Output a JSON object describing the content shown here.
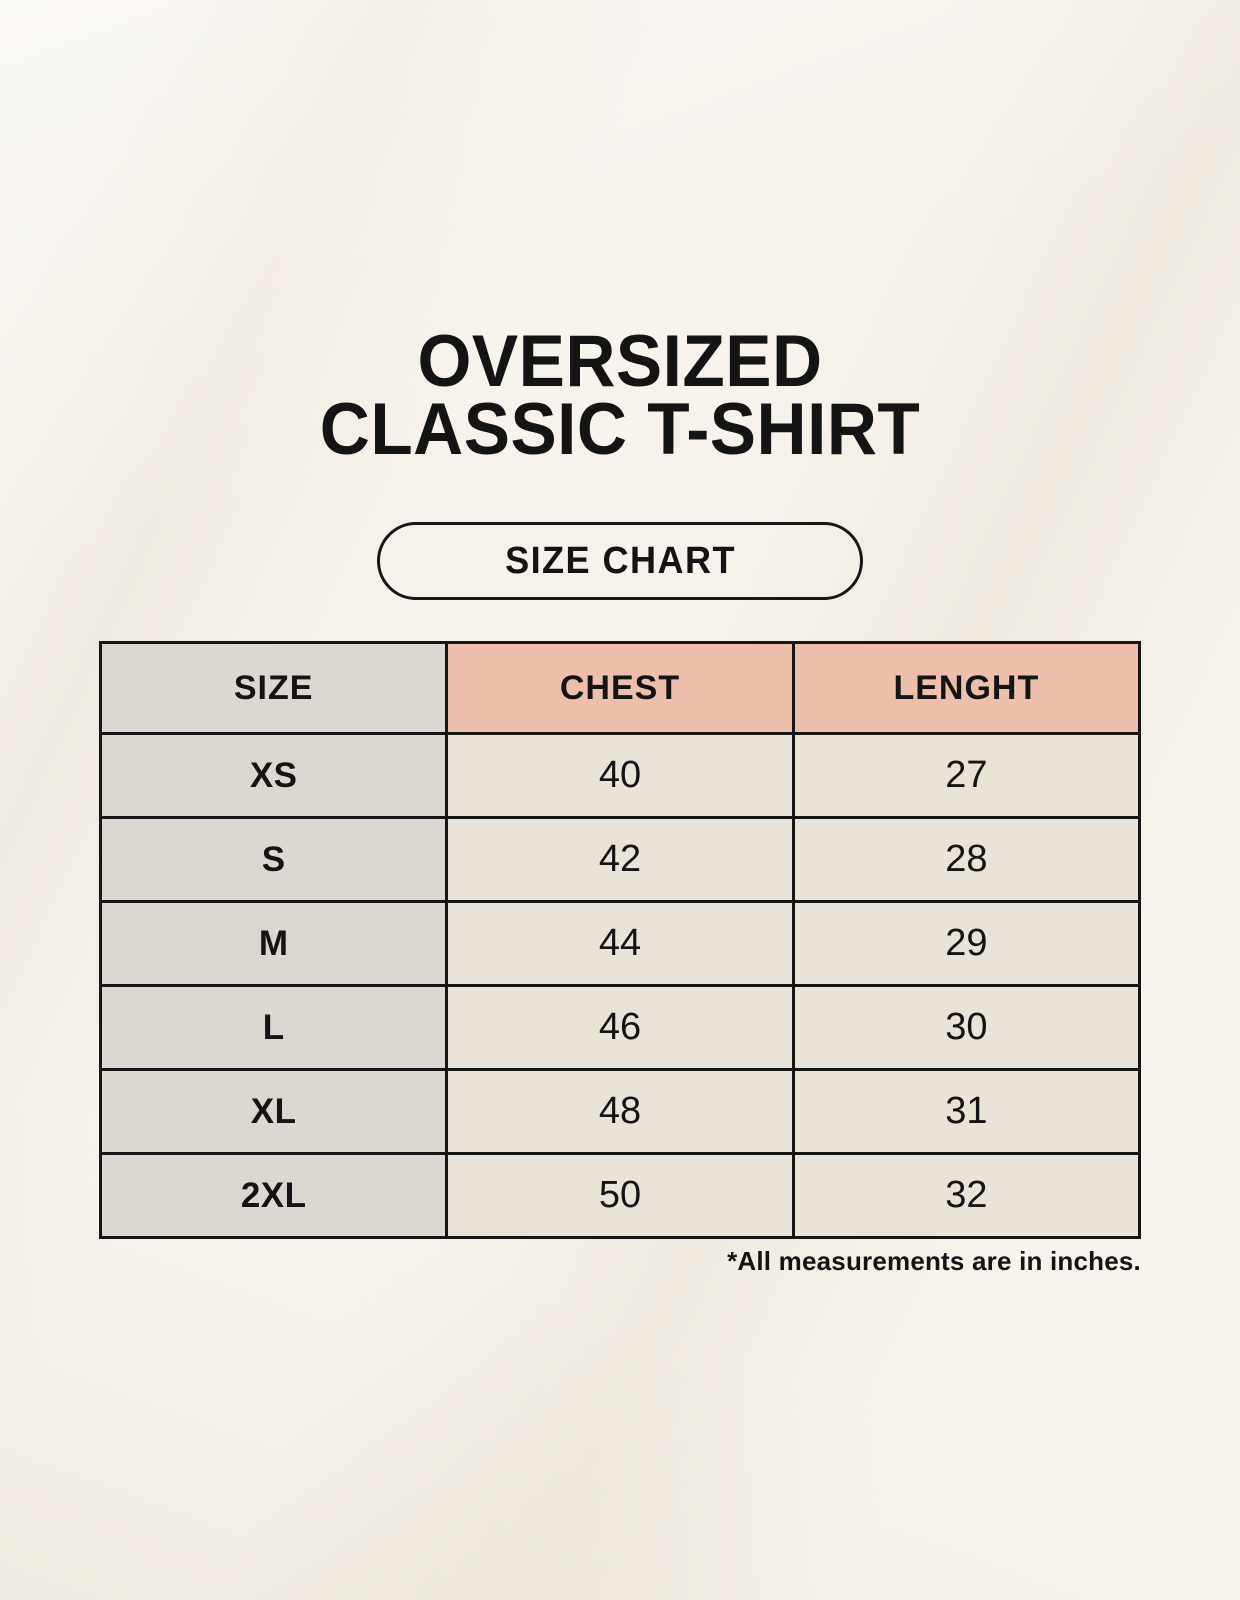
{
  "title": {
    "line1": "OVERSIZED",
    "line2": "CLASSIC T-SHIRT"
  },
  "badge": {
    "label": "SIZE CHART"
  },
  "footnote": "*All measurements are in inches.",
  "colors": {
    "page_bg": "#f7f3ec",
    "size_col_bg": "#ddd7d1",
    "measure_header_bg": "#efbfad",
    "value_cell_bg": "#eae3d8",
    "table_border": "#161616",
    "text": "#141414"
  },
  "chart_data": {
    "type": "table",
    "title": "OVERSIZED CLASSIC T-SHIRT — SIZE CHART",
    "columns": [
      "SIZE",
      "CHEST",
      "LENGHT"
    ],
    "units_note": "*All measurements are in inches.",
    "rows": [
      {
        "size": "XS",
        "chest": "40",
        "lenght": "27"
      },
      {
        "size": "S",
        "chest": "42",
        "lenght": "28"
      },
      {
        "size": "M",
        "chest": "44",
        "lenght": "29"
      },
      {
        "size": "L",
        "chest": "46",
        "lenght": "30"
      },
      {
        "size": "XL",
        "chest": "48",
        "lenght": "31"
      },
      {
        "size": "2XL",
        "chest": "50",
        "lenght": "32"
      }
    ]
  }
}
